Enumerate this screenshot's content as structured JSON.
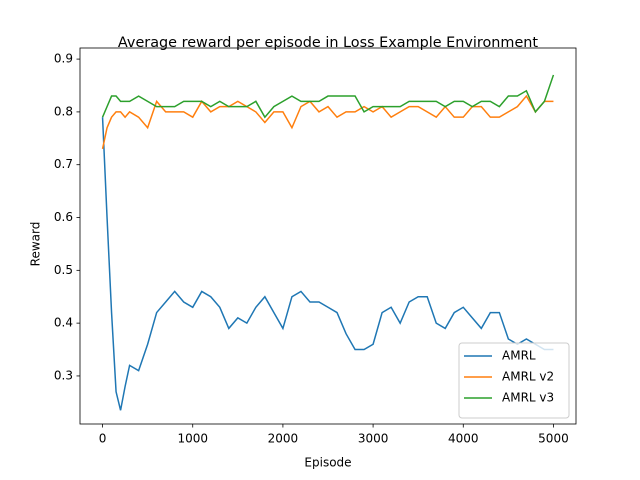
{
  "chart_data": {
    "type": "line",
    "title": "Average reward per episode in Loss Example Environment",
    "xlabel": "Episode",
    "ylabel": "Reward",
    "x": [
      0,
      50,
      100,
      150,
      200,
      250,
      300,
      400,
      500,
      600,
      700,
      800,
      900,
      1000,
      1100,
      1200,
      1300,
      1400,
      1500,
      1600,
      1700,
      1800,
      1900,
      2000,
      2100,
      2200,
      2300,
      2400,
      2500,
      2600,
      2700,
      2800,
      2900,
      3000,
      3100,
      3200,
      3300,
      3400,
      3500,
      3600,
      3700,
      3800,
      3900,
      4000,
      4100,
      4200,
      4300,
      4400,
      4500,
      4600,
      4700,
      4800,
      4900,
      5000
    ],
    "series": [
      {
        "name": "AMRL",
        "color": "#1f77b4",
        "values": [
          0.79,
          0.6,
          0.42,
          0.27,
          0.235,
          0.28,
          0.32,
          0.31,
          0.36,
          0.42,
          0.44,
          0.46,
          0.44,
          0.43,
          0.46,
          0.45,
          0.43,
          0.39,
          0.41,
          0.4,
          0.43,
          0.45,
          0.42,
          0.39,
          0.45,
          0.46,
          0.44,
          0.44,
          0.43,
          0.42,
          0.38,
          0.35,
          0.35,
          0.36,
          0.42,
          0.43,
          0.4,
          0.44,
          0.45,
          0.45,
          0.4,
          0.39,
          0.42,
          0.43,
          0.41,
          0.39,
          0.42,
          0.42,
          0.37,
          0.36,
          0.37,
          0.36,
          0.35,
          0.35
        ]
      },
      {
        "name": "AMRL v2",
        "color": "#ff7f0e",
        "values": [
          0.73,
          0.77,
          0.79,
          0.8,
          0.8,
          0.79,
          0.8,
          0.79,
          0.77,
          0.82,
          0.8,
          0.8,
          0.8,
          0.79,
          0.82,
          0.8,
          0.81,
          0.81,
          0.82,
          0.81,
          0.8,
          0.78,
          0.8,
          0.8,
          0.77,
          0.81,
          0.82,
          0.8,
          0.81,
          0.79,
          0.8,
          0.8,
          0.81,
          0.8,
          0.81,
          0.79,
          0.8,
          0.81,
          0.81,
          0.8,
          0.79,
          0.81,
          0.79,
          0.79,
          0.81,
          0.81,
          0.79,
          0.79,
          0.8,
          0.81,
          0.83,
          0.8,
          0.82,
          0.82
        ]
      },
      {
        "name": "AMRL v3",
        "color": "#2ca02c",
        "values": [
          0.79,
          0.81,
          0.83,
          0.83,
          0.82,
          0.82,
          0.82,
          0.83,
          0.82,
          0.81,
          0.81,
          0.81,
          0.82,
          0.82,
          0.82,
          0.81,
          0.82,
          0.81,
          0.81,
          0.81,
          0.82,
          0.79,
          0.81,
          0.82,
          0.83,
          0.82,
          0.82,
          0.82,
          0.83,
          0.83,
          0.83,
          0.83,
          0.8,
          0.81,
          0.81,
          0.81,
          0.81,
          0.82,
          0.82,
          0.82,
          0.82,
          0.81,
          0.82,
          0.82,
          0.81,
          0.82,
          0.82,
          0.81,
          0.83,
          0.83,
          0.84,
          0.8,
          0.82,
          0.87
        ]
      }
    ],
    "xlim": [
      -250,
      5250
    ],
    "ylim": [
      0.209,
      0.921
    ],
    "xticks": [
      0,
      1000,
      2000,
      3000,
      4000,
      5000
    ],
    "yticks": [
      0.3,
      0.4,
      0.5,
      0.6,
      0.7,
      0.8,
      0.9
    ],
    "grid": false,
    "legend": "lower right"
  }
}
